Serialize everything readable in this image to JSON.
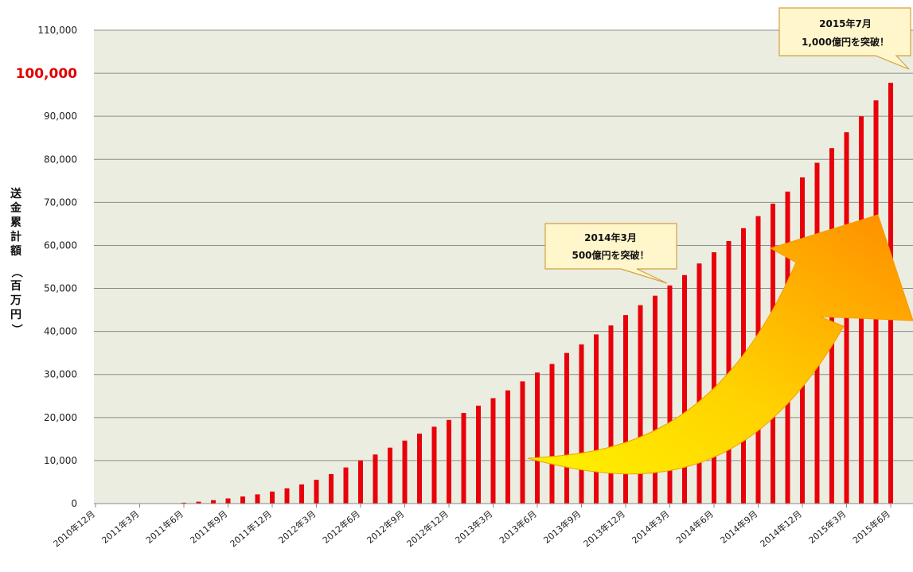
{
  "chart_data": {
    "type": "bar",
    "ylabel": "送金累計額（百万円）",
    "ylim": [
      0,
      110000
    ],
    "yticks": [
      "0",
      "10,000",
      "20,000",
      "30,000",
      "40,000",
      "50,000",
      "60,000",
      "70,000",
      "80,000",
      "90,000",
      "100,000",
      "110,000"
    ],
    "highlighted_tick": "100,000",
    "x_tick_labels": [
      "2010年12月",
      "2011年3月",
      "2011年6月",
      "2011年9月",
      "2011年12月",
      "2012年3月",
      "2012年6月",
      "2012年9月",
      "2012年12月",
      "2013年3月",
      "2013年6月",
      "2013年9月",
      "2013年12月",
      "2014年3月",
      "2014年6月",
      "2014年9月",
      "2014年12月",
      "2015年3月",
      "2015年6月"
    ],
    "categories": [
      "2010-12",
      "2011-01",
      "2011-02",
      "2011-03",
      "2011-04",
      "2011-05",
      "2011-06",
      "2011-07",
      "2011-08",
      "2011-09",
      "2011-10",
      "2011-11",
      "2011-12",
      "2012-01",
      "2012-02",
      "2012-03",
      "2012-04",
      "2012-05",
      "2012-06",
      "2012-07",
      "2012-08",
      "2012-09",
      "2012-10",
      "2012-11",
      "2012-12",
      "2013-01",
      "2013-02",
      "2013-03",
      "2013-04",
      "2013-05",
      "2013-06",
      "2013-07",
      "2013-08",
      "2013-09",
      "2013-10",
      "2013-11",
      "2013-12",
      "2014-01",
      "2014-02",
      "2014-03",
      "2014-04",
      "2014-05",
      "2014-06",
      "2014-07",
      "2014-08",
      "2014-09",
      "2014-10",
      "2014-11",
      "2014-12",
      "2015-01",
      "2015-02",
      "2015-03",
      "2015-04",
      "2015-05",
      "2015-06"
    ],
    "values": [
      0,
      0,
      0,
      0,
      0,
      0,
      200,
      450,
      800,
      1200,
      1650,
      2150,
      2800,
      3550,
      4450,
      5550,
      6850,
      8400,
      10000,
      11400,
      13000,
      14650,
      16250,
      17850,
      19450,
      21050,
      22750,
      24500,
      26300,
      28400,
      30450,
      32450,
      35000,
      37000,
      39300,
      41400,
      43800,
      46100,
      48300,
      50700,
      53100,
      55800,
      58400,
      61000,
      64000,
      66800,
      69700,
      72500,
      75800,
      79200,
      82600,
      86300,
      90000,
      93700,
      97800
    ],
    "bar_color": "#e8000b",
    "plot_background": "#ebede0",
    "grid": true,
    "annotations": [
      {
        "line1": "2014年3月",
        "line2": "500億円を突破！",
        "category": "2014-03"
      },
      {
        "line1": "2015年7月",
        "line2": "1,000億円を突破！",
        "category": "2015-06"
      }
    ]
  }
}
